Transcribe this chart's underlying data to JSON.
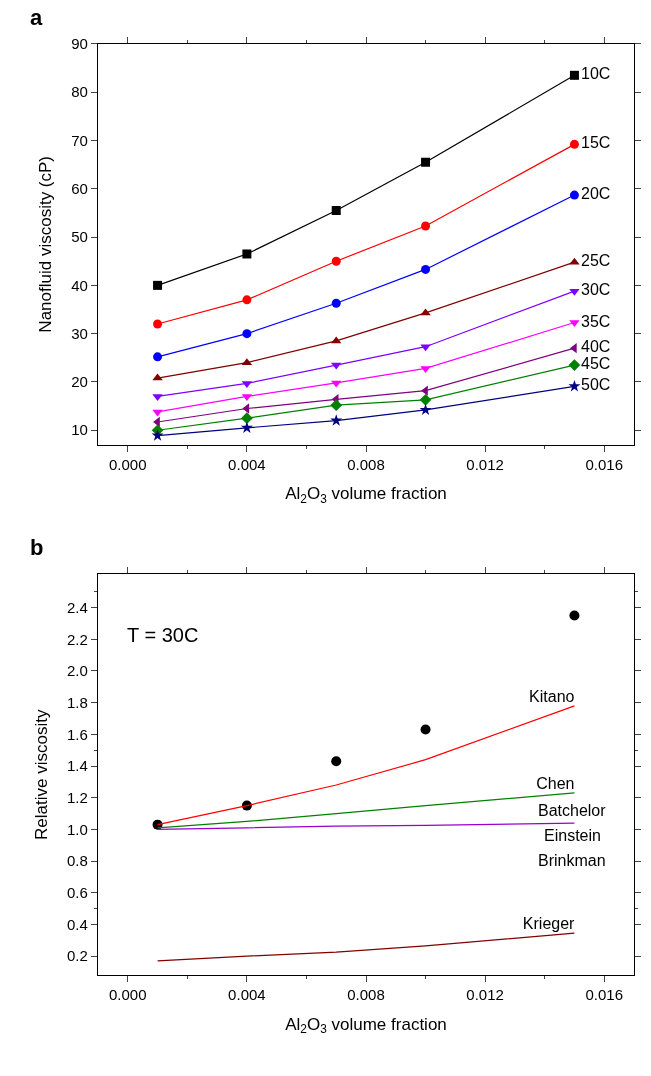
{
  "chart_data": [
    {
      "type": "line",
      "xlabel": "Al$_{2}$O$_{3}$ volume fraction",
      "ylabel": "Nanofluid viscosity (cP)",
      "x": [
        0.001,
        0.004,
        0.007,
        0.01,
        0.015
      ],
      "xlim": [
        -0.001,
        0.017
      ],
      "xticks": [
        {
          "value": 0,
          "label": "0.000"
        },
        {
          "value": 0.004,
          "label": "0.004"
        },
        {
          "value": 0.008,
          "label": "0.008"
        },
        {
          "value": 0.012,
          "label": "0.012"
        },
        {
          "value": 0.016,
          "label": "0.016"
        }
      ],
      "ylim": [
        7,
        90
      ],
      "yticks": [
        10,
        20,
        30,
        40,
        50,
        60,
        70,
        80,
        90
      ],
      "annotations": [
        "a"
      ],
      "series": [
        {
          "name": "10C",
          "color": "#000000",
          "marker": "square",
          "values": [
            40,
            46.5,
            55.5,
            65.5,
            83.5
          ]
        },
        {
          "name": "15C",
          "color": "#ff0000",
          "marker": "circle",
          "values": [
            32,
            37,
            45,
            52.3,
            69.2
          ]
        },
        {
          "name": "20C",
          "color": "#0000ff",
          "marker": "circle",
          "values": [
            25.2,
            30,
            36.3,
            43.3,
            58.7
          ]
        },
        {
          "name": "25C",
          "color": "#800000",
          "marker": "triangle",
          "values": [
            20.8,
            24,
            28.5,
            34.3,
            44.8
          ]
        },
        {
          "name": "30C",
          "color": "#8000ff",
          "marker": "triangle-down",
          "values": [
            17,
            19.7,
            23.5,
            27.3,
            38.8
          ]
        },
        {
          "name": "35C",
          "color": "#ff00ff",
          "marker": "triangle-down",
          "values": [
            13.8,
            17,
            19.8,
            22.8,
            32.3
          ]
        },
        {
          "name": "40C",
          "color": "#800080",
          "marker": "triangle-left",
          "values": [
            11.7,
            14.5,
            16.4,
            18.2,
            27
          ]
        },
        {
          "name": "45C",
          "color": "#008000",
          "marker": "diamond",
          "values": [
            10,
            12.5,
            15.2,
            16.3,
            23.5
          ]
        },
        {
          "name": "50C",
          "color": "#000080",
          "marker": "star",
          "values": [
            8.9,
            10.5,
            12,
            14.2,
            19.1
          ]
        }
      ]
    },
    {
      "type": "line",
      "xlabel": "Al$_{2}$O$_{3}$ volume fraction",
      "ylabel": "Relative viscosity",
      "x": [
        0.001,
        0.004,
        0.007,
        0.01,
        0.015
      ],
      "xlim": [
        -0.001,
        0.017
      ],
      "xticks": [
        {
          "value": 0,
          "label": "0.000"
        },
        {
          "value": 0.004,
          "label": "0.004"
        },
        {
          "value": 0.008,
          "label": "0.008"
        },
        {
          "value": 0.012,
          "label": "0.012"
        },
        {
          "value": 0.016,
          "label": "0.016"
        }
      ],
      "ylim": [
        0.08,
        2.61
      ],
      "yticks": [
        0.2,
        0.4,
        0.6,
        0.8,
        {
          "value": 1,
          "label": "1.0"
        },
        1.2,
        1.4,
        1.6,
        1.8,
        {
          "value": 2,
          "label": "2.0"
        },
        2.2,
        2.4
      ],
      "annotations": [
        "b",
        "T = 30C",
        "Batchelor",
        "Einstein",
        "Brinkman"
      ],
      "series": [
        {
          "type": "scatter",
          "color": "#000000",
          "marker": "circle",
          "values": [
            1.03,
            1.15,
            1.43,
            1.63,
            2.35
          ]
        },
        {
          "name": "Kitano",
          "color": "#ff0000",
          "marker": "none",
          "values": [
            1.03,
            1.15,
            1.28,
            1.44,
            1.78
          ]
        },
        {
          "name": "Chen",
          "color": "#008000",
          "marker": "none",
          "values": [
            1.01,
            1.05,
            1.1,
            1.15,
            1.23
          ]
        },
        {
          "color": "#9900cc",
          "marker": "none",
          "values": [
            1.0,
            1.01,
            1.02,
            1.025,
            1.04
          ]
        },
        {
          "name": "Krieger",
          "color": "#800000",
          "marker": "none",
          "values": [
            0.17,
            0.2,
            0.225,
            0.265,
            0.345
          ]
        }
      ]
    }
  ]
}
